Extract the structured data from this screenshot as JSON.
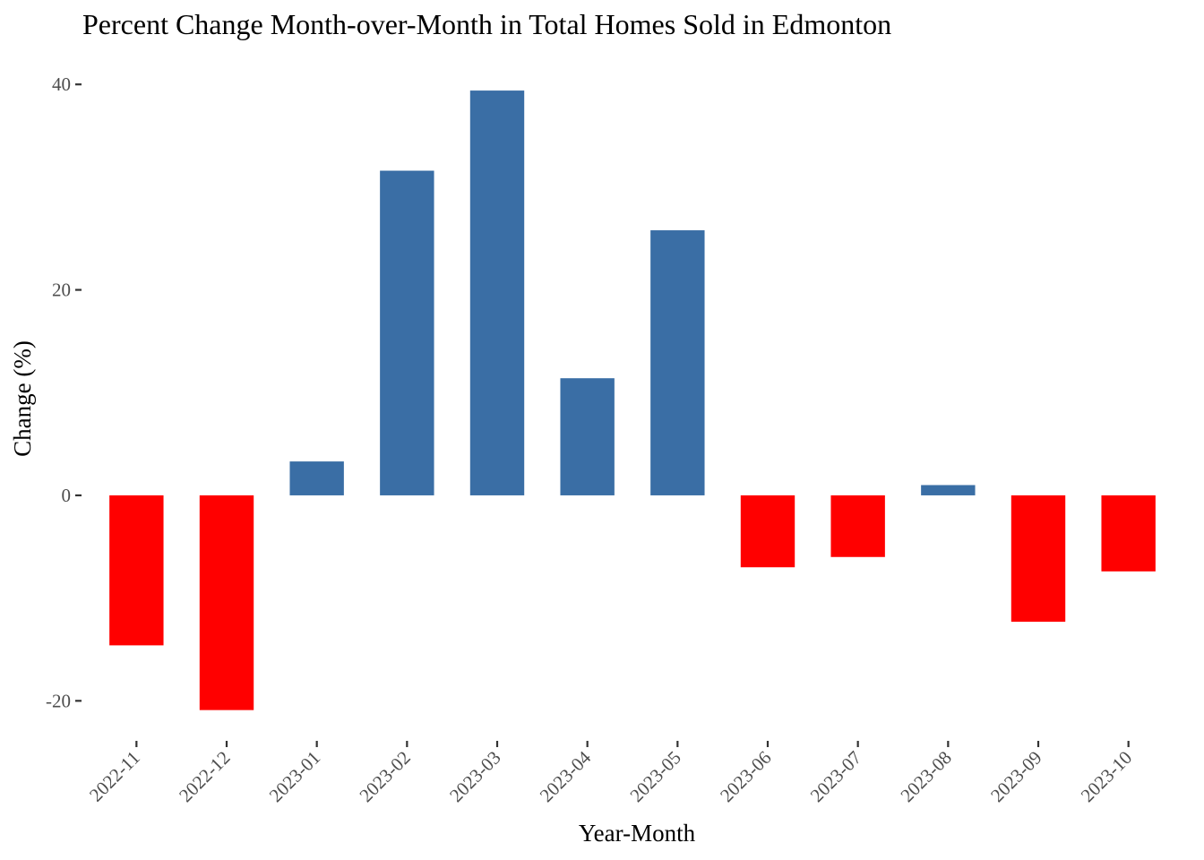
{
  "chart_data": {
    "type": "bar",
    "title": "Percent Change Month-over-Month in Total Homes Sold in Edmonton",
    "xlabel": "Year-Month",
    "ylabel": "Change (%)",
    "categories": [
      "2022-11",
      "2022-12",
      "2023-01",
      "2023-02",
      "2023-03",
      "2023-04",
      "2023-05",
      "2023-06",
      "2023-07",
      "2023-08",
      "2023-09",
      "2023-10"
    ],
    "values": [
      -14.6,
      -20.9,
      3.3,
      31.6,
      39.4,
      11.4,
      25.8,
      -7.0,
      -6.0,
      1.0,
      -12.3,
      -7.4
    ],
    "ylim": [
      -22.5,
      41.5
    ],
    "yticks": [
      -20,
      0,
      20,
      40
    ],
    "ytick_labels": [
      "-20",
      "0",
      "20",
      "40"
    ],
    "grid": false,
    "legend": "none",
    "colors": {
      "positive": "#3a6ea5",
      "negative": "#ff0000"
    }
  }
}
